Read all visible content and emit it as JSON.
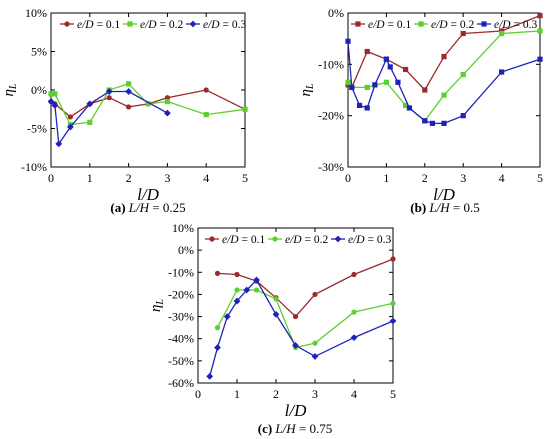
{
  "chart_data": [
    {
      "type": "line",
      "xlim": [
        0,
        5
      ],
      "ylim": [
        -10,
        10
      ],
      "yticks": [
        10,
        5,
        0,
        -5,
        -10
      ],
      "ytick_labels": [
        "10%",
        "5%",
        "0%",
        "-5%",
        "-10%"
      ],
      "xticks": [
        0,
        1,
        2,
        3,
        4,
        5
      ],
      "xtick_labels": [
        "0",
        "1",
        "2",
        "3",
        "4",
        "5"
      ],
      "xlabel": "l/D",
      "ylabel": "η_L",
      "caption_letter": "(a)",
      "caption_text": "L/H = 0.25",
      "legend_position": "top",
      "series": [
        {
          "name": "e/D = 0.1",
          "color": "#9b2a2a",
          "marker": "circle",
          "x": [
            0,
            0.1,
            0.5,
            1,
            1.5,
            2,
            2.5,
            3,
            4,
            5
          ],
          "y": [
            -1.5,
            -1.8,
            -3.5,
            -1.8,
            -1.0,
            -2.2,
            -1.8,
            -1.0,
            0.0,
            -2.5
          ]
        },
        {
          "name": "e/D = 0.2",
          "color": "#5cd02f",
          "marker": "square",
          "x": [
            0,
            0.1,
            0.5,
            1,
            1.5,
            2,
            2.5,
            3,
            4,
            5
          ],
          "y": [
            -0.5,
            -0.5,
            -4.5,
            -4.2,
            0.0,
            0.8,
            -1.8,
            -1.5,
            -3.2,
            -2.5
          ]
        },
        {
          "name": "e/D = 0.3",
          "color": "#1f22b8",
          "marker": "diamond",
          "x": [
            0,
            0.1,
            0.2,
            0.5,
            1,
            1.5,
            2,
            3
          ],
          "y": [
            -1.5,
            -2.0,
            -7.0,
            -4.8,
            -1.8,
            -0.2,
            -0.2,
            -3.0
          ]
        }
      ]
    },
    {
      "type": "line",
      "xlim": [
        0,
        5
      ],
      "ylim": [
        -30,
        0
      ],
      "yticks": [
        0,
        -10,
        -20,
        -30
      ],
      "ytick_labels": [
        "0%",
        "-10%",
        "-20%",
        "-30%"
      ],
      "xticks": [
        0,
        1,
        2,
        3,
        4,
        5
      ],
      "xtick_labels": [
        "0",
        "1",
        "2",
        "3",
        "4",
        "5"
      ],
      "xlabel": "l/D",
      "ylabel": "η_L",
      "caption_letter": "(b)",
      "caption_text": "L/H = 0.5",
      "legend_position": "top",
      "series": [
        {
          "name": "e/D = 0.1",
          "color": "#9b2a2a",
          "marker": "square",
          "x": [
            0,
            0.1,
            0.5,
            1,
            1.5,
            2,
            2.5,
            3,
            4,
            5
          ],
          "y": [
            -14,
            -14.5,
            -7.5,
            -9.0,
            -11.0,
            -15.0,
            -8.5,
            -4.0,
            -3.5,
            -0.5
          ]
        },
        {
          "name": "e/D = 0.2",
          "color": "#5cd02f",
          "marker": "square",
          "x": [
            0,
            0.1,
            0.5,
            1,
            1.5,
            2,
            2.5,
            3,
            4,
            5
          ],
          "y": [
            -13.5,
            -14.5,
            -14.5,
            -13.5,
            -18.0,
            -21.0,
            -16.0,
            -12.0,
            -4.0,
            -3.5
          ]
        },
        {
          "name": "e/D = 0.3",
          "color": "#1f22b8",
          "marker": "square",
          "x": [
            0,
            0.1,
            0.3,
            0.5,
            0.7,
            1,
            1.1,
            1.3,
            1.6,
            2,
            2.2,
            2.5,
            3,
            4,
            5
          ],
          "y": [
            -5.5,
            -14.5,
            -18.0,
            -18.5,
            -14.0,
            -9.0,
            -10.5,
            -13.5,
            -18.5,
            -21.0,
            -21.5,
            -21.5,
            -20.0,
            -11.5,
            -9.0
          ]
        }
      ]
    },
    {
      "type": "line",
      "xlim": [
        0,
        5
      ],
      "ylim": [
        -60,
        10
      ],
      "yticks": [
        10,
        0,
        -10,
        -20,
        -30,
        -40,
        -50,
        -60
      ],
      "ytick_labels": [
        "10%",
        "0%",
        "-10%",
        "-20%",
        "-30%",
        "-40%",
        "-50%",
        "-60%"
      ],
      "xticks": [
        0,
        1,
        2,
        3,
        4,
        5
      ],
      "xtick_labels": [
        "0",
        "1",
        "2",
        "3",
        "4",
        "5"
      ],
      "xlabel": "l/D",
      "ylabel": "η_L",
      "caption_letter": "(c)",
      "caption_text": "L/H = 0.75",
      "legend_position": "top",
      "series": [
        {
          "name": "e/D = 0.1",
          "color": "#9b2a2a",
          "marker": "circle",
          "x": [
            0.5,
            1,
            1.5,
            2,
            2.5,
            3,
            4,
            5
          ],
          "y": [
            -10.5,
            -11.0,
            -14.0,
            -21.5,
            -30.0,
            -20.0,
            -11.0,
            -4.0
          ]
        },
        {
          "name": "e/D = 0.2",
          "color": "#5cd02f",
          "marker": "circle",
          "x": [
            0.5,
            1,
            1.5,
            2,
            2.5,
            3,
            4,
            5
          ],
          "y": [
            -35.0,
            -18.0,
            -18.0,
            -22.0,
            -44.0,
            -42.0,
            -28.0,
            -24.0
          ]
        },
        {
          "name": "e/D = 0.3",
          "color": "#1f22b8",
          "marker": "diamond",
          "x": [
            0.3,
            0.5,
            0.75,
            1,
            1.25,
            1.5,
            2,
            2.5,
            3,
            4,
            5
          ],
          "y": [
            -57.0,
            -44.0,
            -30.0,
            -23.0,
            -18.0,
            -13.5,
            -29.0,
            -43.0,
            -48.0,
            -39.5,
            -32.0
          ]
        }
      ]
    }
  ]
}
